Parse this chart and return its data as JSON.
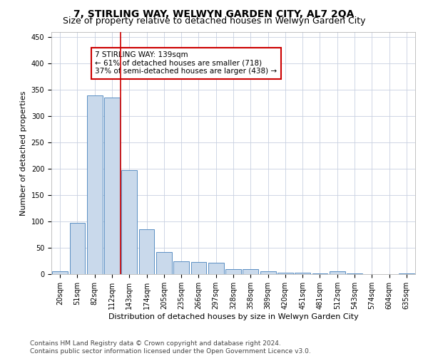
{
  "title": "7, STIRLING WAY, WELWYN GARDEN CITY, AL7 2QA",
  "subtitle": "Size of property relative to detached houses in Welwyn Garden City",
  "xlabel": "Distribution of detached houses by size in Welwyn Garden City",
  "ylabel": "Number of detached properties",
  "categories": [
    "20sqm",
    "51sqm",
    "82sqm",
    "112sqm",
    "143sqm",
    "174sqm",
    "205sqm",
    "235sqm",
    "266sqm",
    "297sqm",
    "328sqm",
    "358sqm",
    "389sqm",
    "420sqm",
    "451sqm",
    "481sqm",
    "512sqm",
    "543sqm",
    "574sqm",
    "604sqm",
    "635sqm"
  ],
  "values": [
    5,
    97,
    340,
    336,
    197,
    85,
    42,
    25,
    23,
    22,
    10,
    9,
    5,
    3,
    3,
    2,
    5,
    1,
    0,
    0,
    2
  ],
  "bar_color": "#c9d9eb",
  "bar_edge_color": "#5a8fc3",
  "ref_line_x": 3.5,
  "annotation_text_line1": "7 STIRLING WAY: 139sqm",
  "annotation_text_line2": "← 61% of detached houses are smaller (718)",
  "annotation_text_line3": "37% of semi-detached houses are larger (438) →",
  "annotation_box_color": "#ffffff",
  "annotation_box_edge": "#cc0000",
  "ref_line_color": "#cc0000",
  "footer_line1": "Contains HM Land Registry data © Crown copyright and database right 2024.",
  "footer_line2": "Contains public sector information licensed under the Open Government Licence v3.0.",
  "ylim": [
    0,
    460
  ],
  "yticks": [
    0,
    50,
    100,
    150,
    200,
    250,
    300,
    350,
    400,
    450
  ],
  "background_color": "#ffffff",
  "grid_color": "#c8d0e0",
  "title_fontsize": 10,
  "subtitle_fontsize": 9,
  "axis_label_fontsize": 8,
  "tick_fontsize": 7,
  "annotation_fontsize": 7.5,
  "footer_fontsize": 6.5
}
